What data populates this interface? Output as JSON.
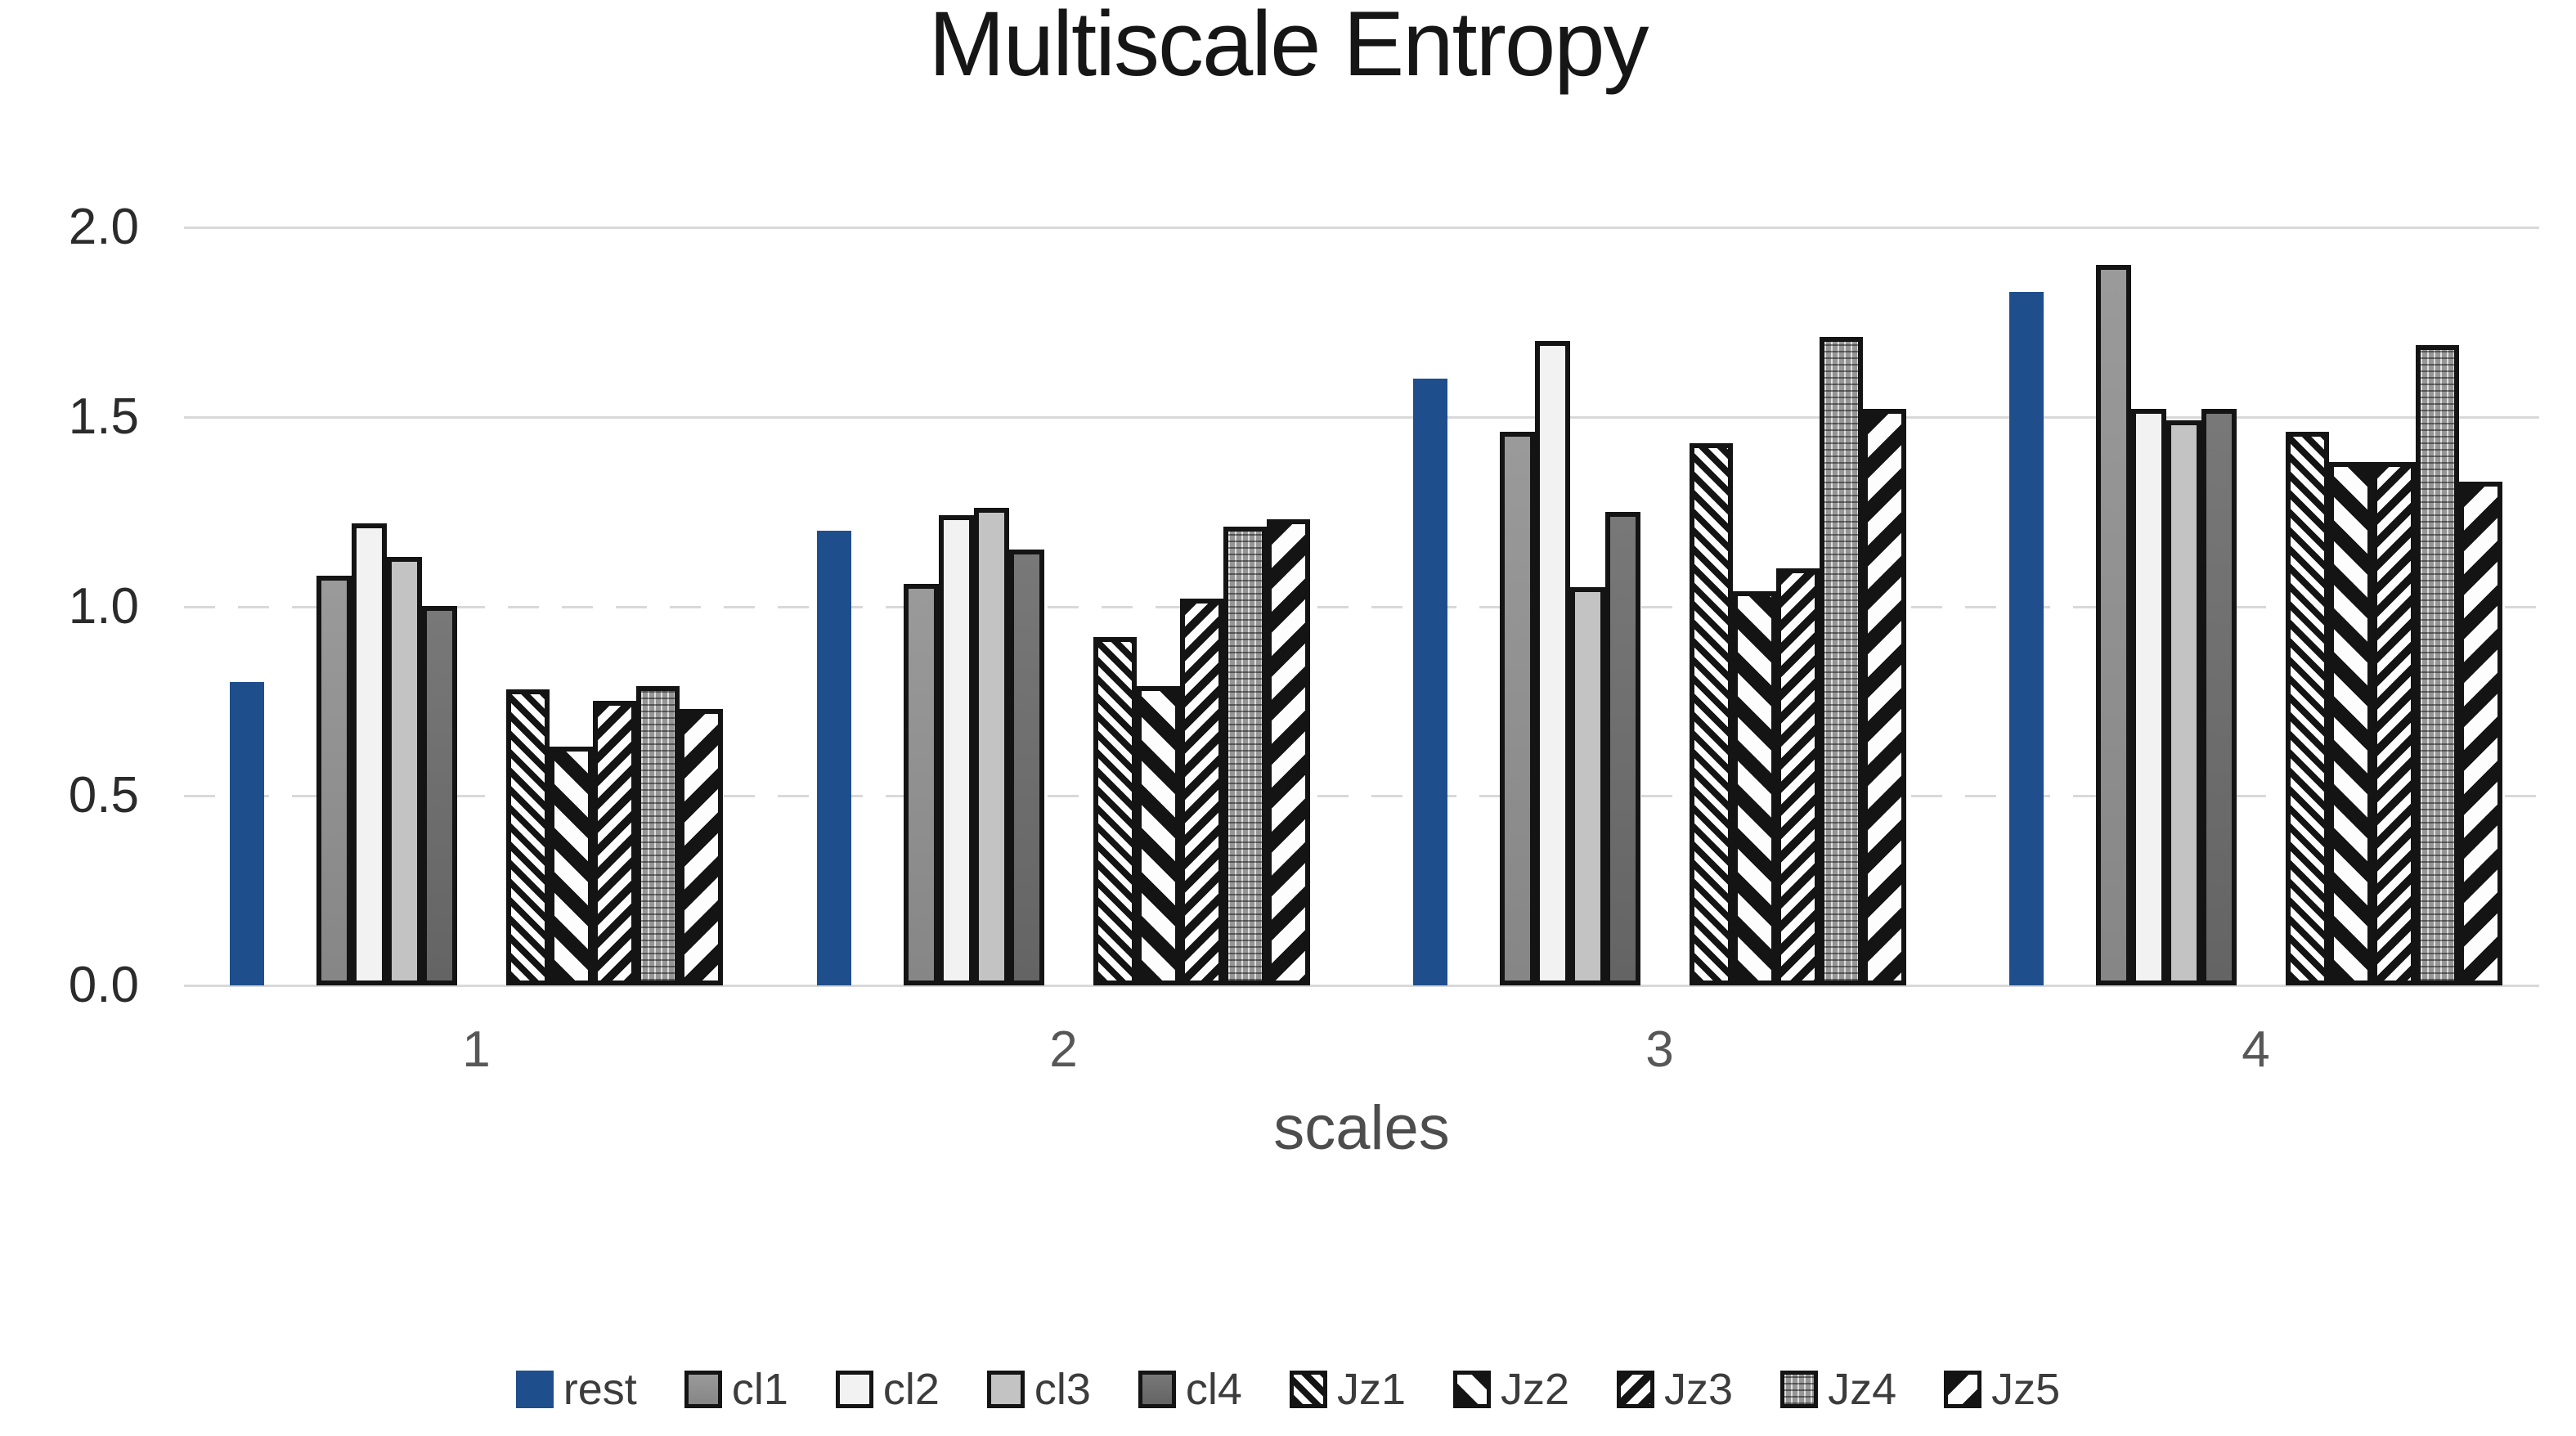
{
  "title": "Multiscale Entropy",
  "colors": {
    "rest_blue": "#1f4e8c",
    "gridline": "#d9d9d9",
    "pattern_ink": "#141414",
    "cl1_gray": "#8f8f8f",
    "cl2_gray": "#f2f2f2",
    "cl3_gray": "#c3c3c3",
    "cl4_gray": "#6d6d6d",
    "jz4_gray": "#969696"
  },
  "chart_data": {
    "type": "bar",
    "title": "Multiscale Entropy",
    "xlabel": "scales",
    "ylabel": "",
    "categories": [
      "1",
      "2",
      "3",
      "4"
    ],
    "ylim": [
      0.0,
      2.0
    ],
    "yticks": [
      "0.0",
      "0.5",
      "1.0",
      "1.5",
      "2.0"
    ],
    "grid": true,
    "legend_position": "bottom",
    "series": [
      {
        "name": "rest",
        "style": "rest",
        "outlined": false,
        "values": [
          0.8,
          1.2,
          1.6,
          1.83
        ]
      },
      {
        "name": "cl1",
        "style": "cl1",
        "outlined": true,
        "values": [
          1.08,
          1.06,
          1.46,
          1.9
        ]
      },
      {
        "name": "cl2",
        "style": "cl2",
        "outlined": true,
        "values": [
          1.22,
          1.24,
          1.7,
          1.52
        ]
      },
      {
        "name": "cl3",
        "style": "cl3",
        "outlined": true,
        "values": [
          1.13,
          1.26,
          1.05,
          1.49
        ]
      },
      {
        "name": "cl4",
        "style": "cl4",
        "outlined": true,
        "values": [
          1.0,
          1.15,
          1.25,
          1.52
        ]
      },
      {
        "name": "Jz1",
        "style": "jz1",
        "outlined": true,
        "values": [
          0.78,
          0.92,
          1.43,
          1.46
        ]
      },
      {
        "name": "Jz2",
        "style": "jz2",
        "outlined": true,
        "values": [
          0.63,
          0.79,
          1.04,
          1.38
        ]
      },
      {
        "name": "Jz3",
        "style": "jz3",
        "outlined": true,
        "values": [
          0.75,
          1.02,
          1.1,
          1.38
        ]
      },
      {
        "name": "Jz4",
        "style": "jz4",
        "outlined": true,
        "values": [
          0.79,
          1.21,
          1.71,
          1.69
        ]
      },
      {
        "name": "Jz5",
        "style": "jz5",
        "outlined": true,
        "values": [
          0.73,
          1.23,
          1.52,
          1.33
        ]
      }
    ]
  }
}
